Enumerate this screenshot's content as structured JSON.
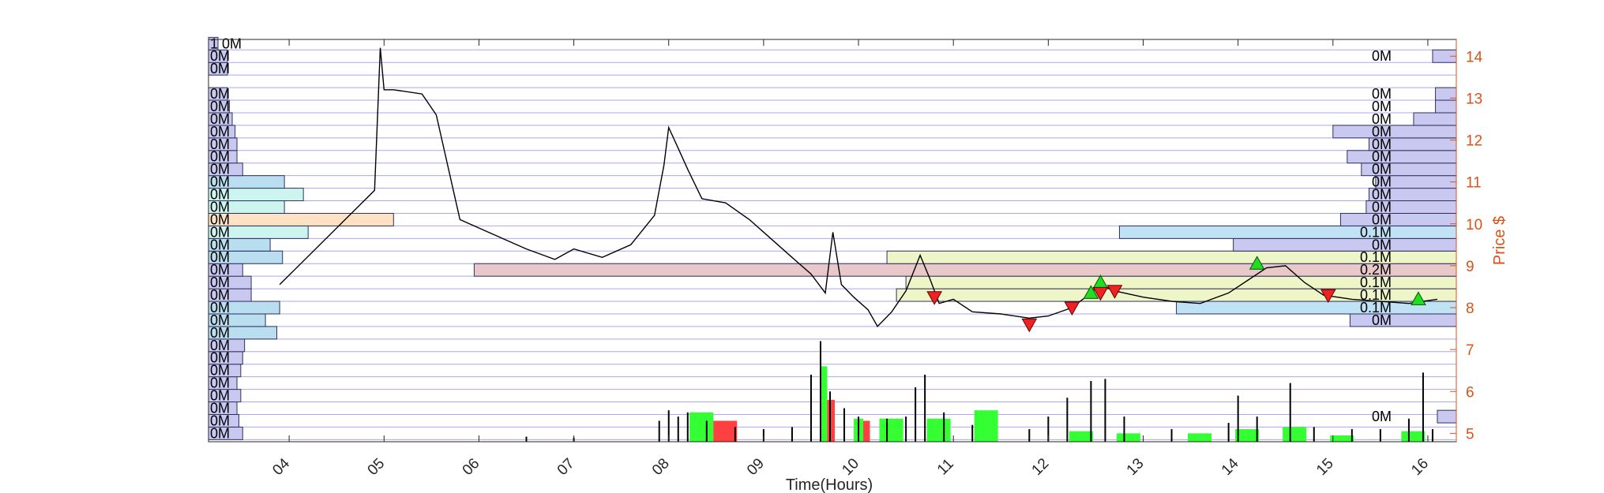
{
  "chart_data": {
    "type": "line",
    "xlabel": "Time(Hours)",
    "ylabel": "Price $",
    "xlim": [
      3.15,
      16.3
    ],
    "ylim": [
      4.8,
      14.4
    ],
    "x_ticks": [
      "04",
      "05",
      "06",
      "07",
      "08",
      "09",
      "10",
      "11",
      "12",
      "13",
      "14",
      "15",
      "16"
    ],
    "x_tick_values": [
      4,
      5,
      6,
      7,
      8,
      9,
      10,
      11,
      12,
      13,
      14,
      15,
      16
    ],
    "y_ticks": [
      "5",
      "6",
      "7",
      "8",
      "9",
      "10",
      "11",
      "12",
      "13",
      "14"
    ],
    "y_tick_values": [
      5,
      6,
      7,
      8,
      9,
      10,
      11,
      12,
      13,
      14
    ],
    "grid": "horizontal",
    "price": [
      [
        3.9,
        8.55
      ],
      [
        4.9,
        10.8
      ],
      [
        4.96,
        14.2
      ],
      [
        5.0,
        13.2
      ],
      [
        5.1,
        13.2
      ],
      [
        5.4,
        13.1
      ],
      [
        5.55,
        12.6
      ],
      [
        5.8,
        10.1
      ],
      [
        6.1,
        9.8
      ],
      [
        6.5,
        9.4
      ],
      [
        6.8,
        9.15
      ],
      [
        7.0,
        9.4
      ],
      [
        7.3,
        9.2
      ],
      [
        7.6,
        9.5
      ],
      [
        7.85,
        10.2
      ],
      [
        7.95,
        11.4
      ],
      [
        8.0,
        12.3
      ],
      [
        8.1,
        11.8
      ],
      [
        8.2,
        11.3
      ],
      [
        8.35,
        10.6
      ],
      [
        8.6,
        10.5
      ],
      [
        8.85,
        10.1
      ],
      [
        9.05,
        9.7
      ],
      [
        9.3,
        9.2
      ],
      [
        9.5,
        8.8
      ],
      [
        9.65,
        8.35
      ],
      [
        9.73,
        9.8
      ],
      [
        9.82,
        8.55
      ],
      [
        9.95,
        8.25
      ],
      [
        10.1,
        7.95
      ],
      [
        10.2,
        7.55
      ],
      [
        10.35,
        7.9
      ],
      [
        10.5,
        8.4
      ],
      [
        10.65,
        9.25
      ],
      [
        10.75,
        8.7
      ],
      [
        10.85,
        8.1
      ],
      [
        11.0,
        8.2
      ],
      [
        11.2,
        7.9
      ],
      [
        11.5,
        7.85
      ],
      [
        11.8,
        7.75
      ],
      [
        12.0,
        7.8
      ],
      [
        12.25,
        8.0
      ],
      [
        12.45,
        8.35
      ],
      [
        12.55,
        8.55
      ],
      [
        12.7,
        8.4
      ],
      [
        13.0,
        8.25
      ],
      [
        13.3,
        8.15
      ],
      [
        13.6,
        8.1
      ],
      [
        13.9,
        8.35
      ],
      [
        14.1,
        8.65
      ],
      [
        14.3,
        8.95
      ],
      [
        14.5,
        9.0
      ],
      [
        14.7,
        8.6
      ],
      [
        14.9,
        8.3
      ],
      [
        15.2,
        8.2
      ],
      [
        15.5,
        8.15
      ],
      [
        15.8,
        8.1
      ],
      [
        15.95,
        8.15
      ],
      [
        16.1,
        8.2
      ]
    ],
    "volume": [
      [
        6.5,
        0.12
      ],
      [
        7.0,
        0.1
      ],
      [
        7.9,
        0.5
      ],
      [
        8.0,
        0.75
      ],
      [
        8.1,
        0.6
      ],
      [
        8.2,
        0.7
      ],
      [
        8.4,
        0.5
      ],
      [
        8.7,
        0.35
      ],
      [
        9.0,
        0.3
      ],
      [
        9.3,
        0.35
      ],
      [
        9.5,
        1.6
      ],
      [
        9.6,
        2.4
      ],
      [
        9.7,
        1.2
      ],
      [
        9.85,
        0.8
      ],
      [
        10.0,
        0.6
      ],
      [
        10.3,
        0.55
      ],
      [
        10.5,
        0.6
      ],
      [
        10.6,
        1.3
      ],
      [
        10.7,
        1.6
      ],
      [
        10.9,
        0.7
      ],
      [
        11.2,
        0.4
      ],
      [
        11.8,
        0.3
      ],
      [
        12.0,
        0.6
      ],
      [
        12.2,
        1.05
      ],
      [
        12.45,
        1.45
      ],
      [
        12.6,
        1.5
      ],
      [
        12.8,
        0.6
      ],
      [
        13.3,
        0.3
      ],
      [
        13.9,
        0.45
      ],
      [
        14.0,
        1.1
      ],
      [
        14.2,
        0.6
      ],
      [
        14.55,
        1.4
      ],
      [
        14.8,
        0.35
      ],
      [
        15.2,
        0.3
      ],
      [
        15.5,
        0.3
      ],
      [
        15.8,
        0.55
      ],
      [
        15.95,
        1.65
      ],
      [
        16.05,
        0.3
      ]
    ],
    "volume_blocks": [
      {
        "x0": 8.22,
        "x1": 8.47,
        "h": 0.7,
        "color": "#33ff33"
      },
      {
        "x0": 8.47,
        "x1": 8.72,
        "h": 0.5,
        "color": "#ff4040"
      },
      {
        "x0": 9.6,
        "x1": 9.67,
        "h": 1.8,
        "color": "#33ff33"
      },
      {
        "x0": 9.67,
        "x1": 9.75,
        "h": 1.0,
        "color": "#ff4040"
      },
      {
        "x0": 9.95,
        "x1": 10.05,
        "h": 0.55,
        "color": "#33ff33"
      },
      {
        "x0": 10.05,
        "x1": 10.12,
        "h": 0.5,
        "color": "#ff4040"
      },
      {
        "x0": 10.22,
        "x1": 10.47,
        "h": 0.55,
        "color": "#33ff33"
      },
      {
        "x0": 10.72,
        "x1": 10.97,
        "h": 0.55,
        "color": "#33ff33"
      },
      {
        "x0": 11.22,
        "x1": 11.47,
        "h": 0.75,
        "color": "#33ff33"
      },
      {
        "x0": 12.22,
        "x1": 12.47,
        "h": 0.25,
        "color": "#33ff33"
      },
      {
        "x0": 12.72,
        "x1": 12.97,
        "h": 0.2,
        "color": "#33ff33"
      },
      {
        "x0": 13.47,
        "x1": 13.72,
        "h": 0.2,
        "color": "#33ff33"
      },
      {
        "x0": 13.97,
        "x1": 14.22,
        "h": 0.3,
        "color": "#33ff33"
      },
      {
        "x0": 14.47,
        "x1": 14.72,
        "h": 0.35,
        "color": "#33ff33"
      },
      {
        "x0": 14.97,
        "x1": 15.22,
        "h": 0.15,
        "color": "#33ff33"
      },
      {
        "x0": 15.72,
        "x1": 15.97,
        "h": 0.25,
        "color": "#33ff33"
      }
    ],
    "left_profile": {
      "bin_size": 0.3,
      "bins": [
        {
          "price": 5.0,
          "length": 0.36,
          "color": "#c8c8f0",
          "label": "0M"
        },
        {
          "price": 5.3,
          "length": 0.32,
          "color": "#c8c8f0",
          "label": "0M"
        },
        {
          "price": 5.6,
          "length": 0.3,
          "color": "#c8c8f0",
          "label": "0M"
        },
        {
          "price": 5.9,
          "length": 0.34,
          "color": "#c8c8f0",
          "label": "0M"
        },
        {
          "price": 6.2,
          "length": 0.3,
          "color": "#c8c8f0",
          "label": "0M"
        },
        {
          "price": 6.5,
          "length": 0.34,
          "color": "#c8c8f0",
          "label": "0M"
        },
        {
          "price": 6.8,
          "length": 0.36,
          "color": "#c8c8f0",
          "label": "0M"
        },
        {
          "price": 7.1,
          "length": 0.38,
          "color": "#c8c8f0",
          "label": "0M"
        },
        {
          "price": 7.4,
          "length": 0.72,
          "color": "#b8def0",
          "label": "0M"
        },
        {
          "price": 7.7,
          "length": 0.6,
          "color": "#b8def0",
          "label": "0M"
        },
        {
          "price": 8.0,
          "length": 0.75,
          "color": "#b8def0",
          "label": "0M"
        },
        {
          "price": 8.3,
          "length": 0.45,
          "color": "#c8c8f0",
          "label": "0M"
        },
        {
          "price": 8.6,
          "length": 0.45,
          "color": "#c8c8f0",
          "label": "0M"
        },
        {
          "price": 8.9,
          "length": 0.36,
          "color": "#c8c8f0",
          "label": "0M"
        },
        {
          "price": 9.2,
          "length": 0.78,
          "color": "#b8def0",
          "label": "0M"
        },
        {
          "price": 9.5,
          "length": 0.65,
          "color": "#b8def0",
          "label": "0M"
        },
        {
          "price": 9.8,
          "length": 1.05,
          "color": "#ccf5f0",
          "label": "0M"
        },
        {
          "price": 10.1,
          "length": 1.95,
          "color": "#ffe2c4",
          "label": "0M"
        },
        {
          "price": 10.4,
          "length": 0.8,
          "color": "#ccf5f0",
          "label": "0M"
        },
        {
          "price": 10.7,
          "length": 1.0,
          "color": "#ccf5f0",
          "label": "0M"
        },
        {
          "price": 11.0,
          "length": 0.8,
          "color": "#b8def0",
          "label": "0M"
        },
        {
          "price": 11.3,
          "length": 0.36,
          "color": "#c8c8f0",
          "label": "0M"
        },
        {
          "price": 11.6,
          "length": 0.3,
          "color": "#c8c8f0",
          "label": "0M"
        },
        {
          "price": 11.9,
          "length": 0.3,
          "color": "#c8c8f0",
          "label": "0M"
        },
        {
          "price": 12.2,
          "length": 0.28,
          "color": "#c8c8f0",
          "label": "0M"
        },
        {
          "price": 12.5,
          "length": 0.25,
          "color": "#c8c8f0",
          "label": "0M"
        },
        {
          "price": 12.8,
          "length": 0.22,
          "color": "#c8c8f0",
          "label": "0M"
        },
        {
          "price": 13.1,
          "length": 0.2,
          "color": "#c8c8f0",
          "label": "0M"
        },
        {
          "price": 13.7,
          "length": 0.2,
          "color": "#c8c8f0",
          "label": "0M"
        },
        {
          "price": 14.0,
          "length": 0.2,
          "color": "#c8c8f0",
          "label": "0M"
        },
        {
          "price": 14.3,
          "length": 0.1,
          "color": "#c8c8f0",
          "label": "1 0M"
        }
      ]
    },
    "right_profile": {
      "bin_size": 0.3,
      "bins": [
        {
          "price": 5.4,
          "length": 0.2,
          "color": "#c8c8f0",
          "label": "0M"
        },
        {
          "price": 7.7,
          "length": 1.12,
          "color": "#c8c8f0",
          "label": "0M"
        },
        {
          "price": 8.0,
          "length": 2.95,
          "color": "#bfe3f5",
          "label": "0.1M"
        },
        {
          "price": 8.3,
          "length": 5.9,
          "color": "#eef6c8",
          "label": "0.1M"
        },
        {
          "price": 8.6,
          "length": 5.8,
          "color": "#eef6c8",
          "label": "0.1M"
        },
        {
          "price": 8.9,
          "length": 10.35,
          "color": "#e8c8c8",
          "label": "0.2M"
        },
        {
          "price": 9.2,
          "length": 6.0,
          "color": "#eef6c8",
          "label": "0.1M"
        },
        {
          "price": 9.5,
          "length": 2.35,
          "color": "#c8c8f0",
          "label": "0M"
        },
        {
          "price": 9.8,
          "length": 3.55,
          "color": "#bfe3f5",
          "label": "0.1M"
        },
        {
          "price": 10.1,
          "length": 1.22,
          "color": "#c8c8f0",
          "label": "0M"
        },
        {
          "price": 10.4,
          "length": 0.95,
          "color": "#c8c8f0",
          "label": "0M"
        },
        {
          "price": 10.7,
          "length": 0.92,
          "color": "#c8c8f0",
          "label": "0M"
        },
        {
          "price": 11.0,
          "length": 0.85,
          "color": "#c8c8f0",
          "label": "0M"
        },
        {
          "price": 11.3,
          "length": 1.0,
          "color": "#c8c8f0",
          "label": "0M"
        },
        {
          "price": 11.6,
          "length": 1.15,
          "color": "#c8c8f0",
          "label": "0M"
        },
        {
          "price": 11.9,
          "length": 0.92,
          "color": "#c8c8f0",
          "label": "0M"
        },
        {
          "price": 12.2,
          "length": 1.3,
          "color": "#c8c8f0",
          "label": "0M"
        },
        {
          "price": 12.5,
          "length": 0.45,
          "color": "#c8c8f0",
          "label": "0M"
        },
        {
          "price": 12.8,
          "length": 0.22,
          "color": "#c8c8f0",
          "label": "0M"
        },
        {
          "price": 13.1,
          "length": 0.22,
          "color": "#c8c8f0",
          "label": "0M"
        },
        {
          "price": 14.0,
          "length": 0.25,
          "color": "#c8c8f0",
          "label": "0M"
        }
      ]
    },
    "buy_signals": [
      [
        12.55,
        8.6
      ],
      [
        14.2,
        9.05
      ],
      [
        15.9,
        8.2
      ],
      [
        12.45,
        8.35
      ]
    ],
    "sell_signals": [
      [
        10.8,
        8.25
      ],
      [
        11.8,
        7.6
      ],
      [
        12.25,
        8.0
      ],
      [
        12.55,
        8.35
      ],
      [
        12.7,
        8.4
      ],
      [
        14.95,
        8.3
      ]
    ]
  }
}
